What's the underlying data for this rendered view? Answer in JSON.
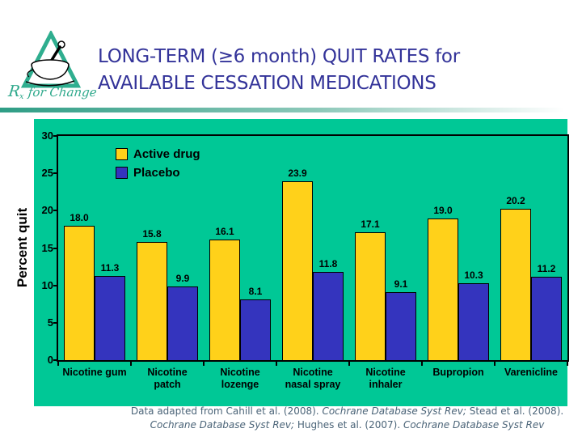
{
  "slide": {
    "logo": {
      "r": "R",
      "x": "x",
      "rest": " for Change"
    },
    "title_line1": "LONG-TERM (≥6 month) QUIT RATES for",
    "title_line2": "AVAILABLE CESSATION MEDICATIONS",
    "title_color": "#333399"
  },
  "chart_data": {
    "type": "bar",
    "title": "",
    "categories": [
      "Nicotine gum",
      "Nicotine\npatch",
      "Nicotine\nlozenge",
      "Nicotine\nnasal spray",
      "Nicotine\ninhaler",
      "Bupropion",
      "Varenicline"
    ],
    "series": [
      {
        "name": "Active drug",
        "color": "#ffd11a",
        "values": [
          18.0,
          15.8,
          16.1,
          23.9,
          17.1,
          19.0,
          20.2
        ]
      },
      {
        "name": "Placebo",
        "color": "#3434be",
        "values": [
          11.3,
          9.9,
          8.1,
          11.8,
          9.1,
          10.3,
          11.2
        ]
      }
    ],
    "xlabel": "",
    "ylabel": "Percent quit",
    "ylim": [
      0,
      30
    ],
    "yticks": [
      0,
      5,
      10,
      15,
      20,
      25,
      30
    ],
    "grid": false,
    "legend_position": "top-left-inside",
    "plot_background": "#00c896",
    "bar_outline": "#000000",
    "data_labels_shown": true
  },
  "citation": {
    "color": "#4b6478",
    "lines": [
      [
        {
          "text": "Data adapted from Cahill et al. (2008). ",
          "italic": false
        },
        {
          "text": "Cochrane Database Syst Rev;",
          "italic": true
        },
        {
          "text": " Stead et al. (2008).",
          "italic": false
        }
      ],
      [
        {
          "text": "Cochrane Database Syst Rev;",
          "italic": true
        },
        {
          "text": "  Hughes et al. (2007). ",
          "italic": false
        },
        {
          "text": "Cochrane Database Syst Rev",
          "italic": true
        }
      ]
    ]
  }
}
